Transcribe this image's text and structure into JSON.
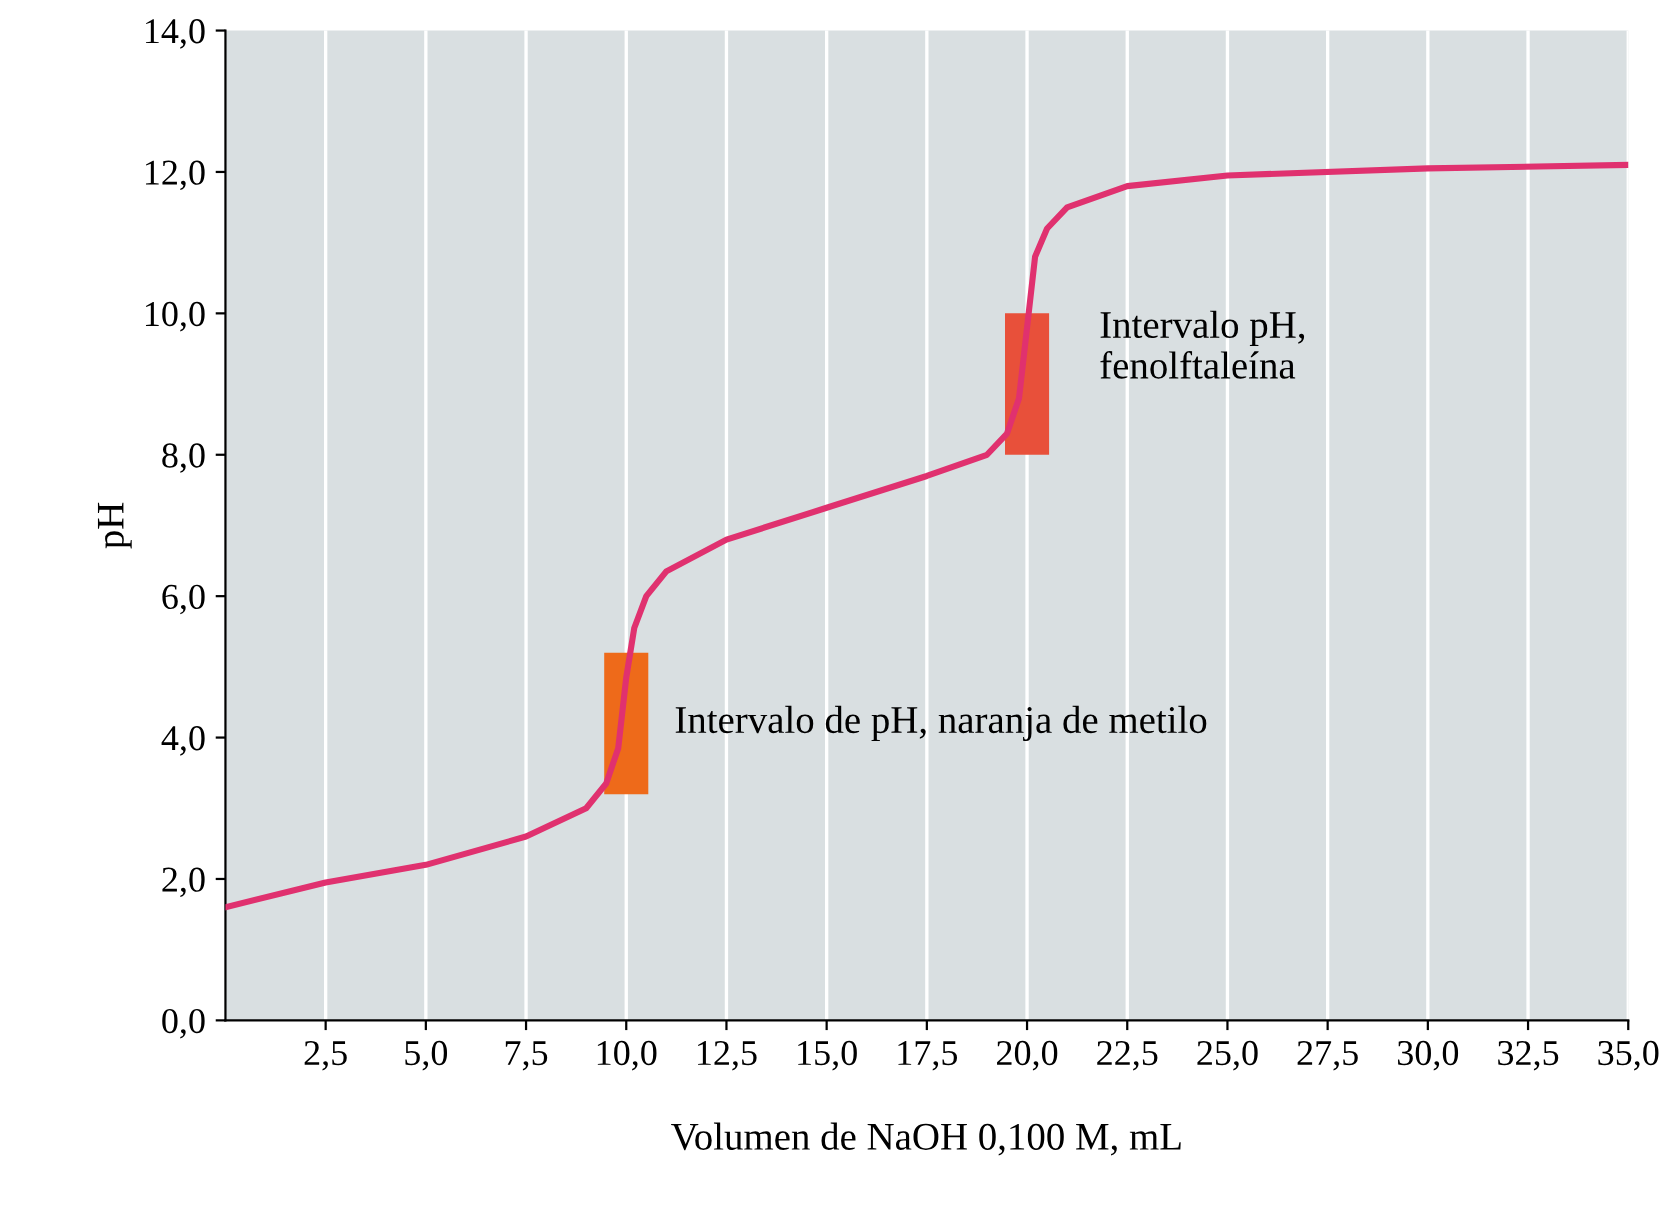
{
  "chart_data": {
    "type": "line",
    "xlabel": "Volumen de NaOH 0,100 M, mL",
    "ylabel": "pH",
    "xlim": [
      0,
      35
    ],
    "ylim": [
      0,
      14
    ],
    "xticks": [
      {
        "value": 2.5,
        "label": "2,5"
      },
      {
        "value": 5,
        "label": "5,0"
      },
      {
        "value": 7.5,
        "label": "7,5"
      },
      {
        "value": 10,
        "label": "10,0"
      },
      {
        "value": 12.5,
        "label": "12,5"
      },
      {
        "value": 15,
        "label": "15,0"
      },
      {
        "value": 17.5,
        "label": "17,5"
      },
      {
        "value": 20,
        "label": "20,0"
      },
      {
        "value": 22.5,
        "label": "22,5"
      },
      {
        "value": 25,
        "label": "25,0"
      },
      {
        "value": 27.5,
        "label": "27,5"
      },
      {
        "value": 30,
        "label": "30,0"
      },
      {
        "value": 32.5,
        "label": "32,5"
      },
      {
        "value": 35,
        "label": "35,0"
      }
    ],
    "yticks": [
      {
        "value": 0,
        "label": "0,0"
      },
      {
        "value": 2,
        "label": "2,0"
      },
      {
        "value": 4,
        "label": "4,0"
      },
      {
        "value": 6,
        "label": "6,0"
      },
      {
        "value": 8,
        "label": "8,0"
      },
      {
        "value": 10,
        "label": "10,0"
      },
      {
        "value": 12,
        "label": "12,0"
      },
      {
        "value": 14,
        "label": "14,0"
      }
    ],
    "grid": "x",
    "series": [
      {
        "color": "#e0316f",
        "x": [
          0,
          2.5,
          5,
          7.5,
          9,
          9.5,
          9.8,
          10,
          10.2,
          10.5,
          11,
          12.5,
          15,
          17.5,
          19,
          19.5,
          19.8,
          20,
          20.2,
          20.5,
          21,
          22.5,
          25,
          30,
          35
        ],
        "values": [
          1.6,
          1.95,
          2.2,
          2.6,
          3.0,
          3.35,
          3.85,
          4.85,
          5.55,
          6.0,
          6.35,
          6.8,
          7.25,
          7.7,
          8.0,
          8.3,
          8.8,
          9.8,
          10.8,
          11.2,
          11.5,
          11.8,
          11.95,
          12.05,
          12.1
        ]
      },
      {
        "type": "bar",
        "x": [
          10,
          20
        ],
        "base": [
          3.2,
          8.0
        ],
        "values": [
          2.0,
          2.0
        ],
        "colors": [
          "#ee6a1a",
          "#e8503a"
        ]
      }
    ],
    "annotations": [
      "Intervalo de pH, naranja de metilo",
      "Intervalo pH,\nfenolftaleína"
    ]
  }
}
